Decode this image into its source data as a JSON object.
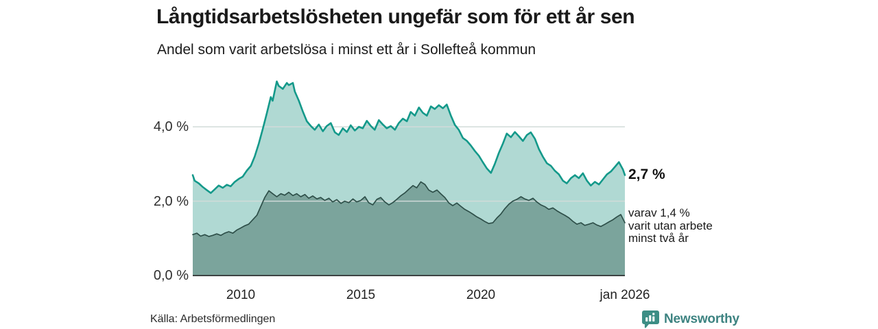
{
  "header": {
    "title": "Långtidsarbetslösheten ungefär som för ett år sen",
    "subtitle": "Andel som varit arbetslösa i minst ett år i Sollefteå kommun"
  },
  "chart_data": {
    "type": "area",
    "title": "Långtidsarbetslösheten ungefär som för ett år sen",
    "subtitle": "Andel som varit arbetslösa i minst ett år i Sollefteå kommun",
    "unit": "%",
    "grid": "on",
    "x_range": [
      2008,
      2026
    ],
    "y_range": [
      0,
      5.4
    ],
    "grid_color": "#d2dbd9",
    "axis_color": "#3d4343",
    "y_ticks": [
      {
        "label": "0,0 %",
        "value": 0
      },
      {
        "label": "2,0 %",
        "value": 2
      },
      {
        "label": "4,0 %",
        "value": 4
      }
    ],
    "x_ticks": [
      {
        "label": "2010",
        "year": 2010
      },
      {
        "label": "2015",
        "year": 2015
      },
      {
        "label": "2020",
        "year": 2020
      },
      {
        "label": "jan 2026",
        "year": 2026
      }
    ],
    "series": [
      {
        "name": "Andel arbetslösa minst ett år",
        "color": "#14998a",
        "fill": "#b0d9d3",
        "stroke_width": 2.6,
        "last_value_label": "2,7 %",
        "points": [
          [
            2008.0,
            2.7
          ],
          [
            2008.08,
            2.55
          ],
          [
            2008.25,
            2.48
          ],
          [
            2008.42,
            2.38
          ],
          [
            2008.58,
            2.3
          ],
          [
            2008.75,
            2.22
          ],
          [
            2008.92,
            2.32
          ],
          [
            2009.08,
            2.42
          ],
          [
            2009.25,
            2.36
          ],
          [
            2009.42,
            2.44
          ],
          [
            2009.58,
            2.4
          ],
          [
            2009.75,
            2.52
          ],
          [
            2009.92,
            2.6
          ],
          [
            2010.08,
            2.66
          ],
          [
            2010.25,
            2.82
          ],
          [
            2010.42,
            2.95
          ],
          [
            2010.58,
            3.2
          ],
          [
            2010.75,
            3.55
          ],
          [
            2010.92,
            3.95
          ],
          [
            2011.08,
            4.35
          ],
          [
            2011.25,
            4.8
          ],
          [
            2011.33,
            4.7
          ],
          [
            2011.5,
            5.22
          ],
          [
            2011.58,
            5.1
          ],
          [
            2011.75,
            5.02
          ],
          [
            2011.92,
            5.18
          ],
          [
            2012.0,
            5.12
          ],
          [
            2012.17,
            5.18
          ],
          [
            2012.25,
            4.95
          ],
          [
            2012.42,
            4.7
          ],
          [
            2012.58,
            4.42
          ],
          [
            2012.75,
            4.15
          ],
          [
            2012.92,
            4.02
          ],
          [
            2013.08,
            3.92
          ],
          [
            2013.25,
            4.06
          ],
          [
            2013.42,
            3.88
          ],
          [
            2013.58,
            4.02
          ],
          [
            2013.75,
            4.1
          ],
          [
            2013.92,
            3.85
          ],
          [
            2014.08,
            3.78
          ],
          [
            2014.25,
            3.96
          ],
          [
            2014.42,
            3.86
          ],
          [
            2014.58,
            4.04
          ],
          [
            2014.75,
            3.9
          ],
          [
            2014.92,
            4.0
          ],
          [
            2015.08,
            3.96
          ],
          [
            2015.25,
            4.16
          ],
          [
            2015.42,
            4.02
          ],
          [
            2015.58,
            3.92
          ],
          [
            2015.75,
            4.18
          ],
          [
            2015.92,
            4.06
          ],
          [
            2016.08,
            3.96
          ],
          [
            2016.25,
            4.02
          ],
          [
            2016.42,
            3.92
          ],
          [
            2016.58,
            4.1
          ],
          [
            2016.75,
            4.22
          ],
          [
            2016.92,
            4.15
          ],
          [
            2017.08,
            4.4
          ],
          [
            2017.25,
            4.3
          ],
          [
            2017.42,
            4.52
          ],
          [
            2017.58,
            4.38
          ],
          [
            2017.75,
            4.3
          ],
          [
            2017.92,
            4.55
          ],
          [
            2018.08,
            4.48
          ],
          [
            2018.25,
            4.58
          ],
          [
            2018.42,
            4.5
          ],
          [
            2018.58,
            4.6
          ],
          [
            2018.75,
            4.3
          ],
          [
            2018.92,
            4.05
          ],
          [
            2019.08,
            3.92
          ],
          [
            2019.25,
            3.7
          ],
          [
            2019.42,
            3.62
          ],
          [
            2019.58,
            3.5
          ],
          [
            2019.75,
            3.35
          ],
          [
            2019.92,
            3.22
          ],
          [
            2020.08,
            3.05
          ],
          [
            2020.25,
            2.88
          ],
          [
            2020.42,
            2.76
          ],
          [
            2020.58,
            3.0
          ],
          [
            2020.75,
            3.3
          ],
          [
            2020.92,
            3.55
          ],
          [
            2021.08,
            3.82
          ],
          [
            2021.25,
            3.72
          ],
          [
            2021.42,
            3.86
          ],
          [
            2021.58,
            3.75
          ],
          [
            2021.75,
            3.62
          ],
          [
            2021.92,
            3.78
          ],
          [
            2022.08,
            3.85
          ],
          [
            2022.25,
            3.68
          ],
          [
            2022.42,
            3.4
          ],
          [
            2022.58,
            3.2
          ],
          [
            2022.75,
            3.02
          ],
          [
            2022.92,
            2.95
          ],
          [
            2023.08,
            2.82
          ],
          [
            2023.25,
            2.72
          ],
          [
            2023.42,
            2.55
          ],
          [
            2023.58,
            2.48
          ],
          [
            2023.75,
            2.62
          ],
          [
            2023.92,
            2.7
          ],
          [
            2024.08,
            2.62
          ],
          [
            2024.25,
            2.75
          ],
          [
            2024.42,
            2.55
          ],
          [
            2024.58,
            2.42
          ],
          [
            2024.75,
            2.52
          ],
          [
            2024.92,
            2.45
          ],
          [
            2025.08,
            2.58
          ],
          [
            2025.25,
            2.72
          ],
          [
            2025.42,
            2.8
          ],
          [
            2025.58,
            2.92
          ],
          [
            2025.75,
            3.05
          ],
          [
            2025.92,
            2.85
          ],
          [
            2026.0,
            2.7
          ]
        ]
      },
      {
        "name": "varav utan arbete minst två år",
        "color": "#2e4f49",
        "fill": "#7ba49c",
        "stroke_width": 1.7,
        "last_value_label": "1,4 %",
        "points": [
          [
            2008.0,
            1.1
          ],
          [
            2008.17,
            1.14
          ],
          [
            2008.33,
            1.06
          ],
          [
            2008.5,
            1.1
          ],
          [
            2008.67,
            1.05
          ],
          [
            2008.83,
            1.08
          ],
          [
            2009.0,
            1.12
          ],
          [
            2009.17,
            1.08
          ],
          [
            2009.33,
            1.14
          ],
          [
            2009.5,
            1.18
          ],
          [
            2009.67,
            1.14
          ],
          [
            2009.83,
            1.22
          ],
          [
            2010.0,
            1.28
          ],
          [
            2010.17,
            1.34
          ],
          [
            2010.33,
            1.38
          ],
          [
            2010.5,
            1.5
          ],
          [
            2010.67,
            1.62
          ],
          [
            2010.83,
            1.85
          ],
          [
            2011.0,
            2.1
          ],
          [
            2011.17,
            2.28
          ],
          [
            2011.33,
            2.2
          ],
          [
            2011.5,
            2.12
          ],
          [
            2011.67,
            2.2
          ],
          [
            2011.83,
            2.16
          ],
          [
            2012.0,
            2.24
          ],
          [
            2012.17,
            2.15
          ],
          [
            2012.33,
            2.2
          ],
          [
            2012.5,
            2.12
          ],
          [
            2012.67,
            2.18
          ],
          [
            2012.83,
            2.08
          ],
          [
            2013.0,
            2.14
          ],
          [
            2013.17,
            2.06
          ],
          [
            2013.33,
            2.1
          ],
          [
            2013.5,
            2.02
          ],
          [
            2013.67,
            2.08
          ],
          [
            2013.83,
            1.98
          ],
          [
            2014.0,
            2.04
          ],
          [
            2014.17,
            1.94
          ],
          [
            2014.33,
            2.0
          ],
          [
            2014.5,
            1.96
          ],
          [
            2014.67,
            2.06
          ],
          [
            2014.83,
            1.98
          ],
          [
            2015.0,
            2.02
          ],
          [
            2015.17,
            2.12
          ],
          [
            2015.33,
            1.96
          ],
          [
            2015.5,
            1.9
          ],
          [
            2015.67,
            2.05
          ],
          [
            2015.83,
            2.1
          ],
          [
            2016.0,
            1.98
          ],
          [
            2016.17,
            1.9
          ],
          [
            2016.33,
            1.96
          ],
          [
            2016.5,
            2.05
          ],
          [
            2016.67,
            2.15
          ],
          [
            2016.83,
            2.22
          ],
          [
            2017.0,
            2.32
          ],
          [
            2017.17,
            2.42
          ],
          [
            2017.33,
            2.36
          ],
          [
            2017.5,
            2.52
          ],
          [
            2017.67,
            2.45
          ],
          [
            2017.83,
            2.3
          ],
          [
            2018.0,
            2.24
          ],
          [
            2018.17,
            2.3
          ],
          [
            2018.33,
            2.2
          ],
          [
            2018.5,
            2.1
          ],
          [
            2018.67,
            1.95
          ],
          [
            2018.83,
            1.88
          ],
          [
            2019.0,
            1.95
          ],
          [
            2019.17,
            1.86
          ],
          [
            2019.33,
            1.78
          ],
          [
            2019.5,
            1.72
          ],
          [
            2019.67,
            1.65
          ],
          [
            2019.83,
            1.58
          ],
          [
            2020.0,
            1.52
          ],
          [
            2020.17,
            1.45
          ],
          [
            2020.33,
            1.4
          ],
          [
            2020.5,
            1.42
          ],
          [
            2020.67,
            1.55
          ],
          [
            2020.83,
            1.65
          ],
          [
            2021.0,
            1.8
          ],
          [
            2021.17,
            1.92
          ],
          [
            2021.33,
            2.0
          ],
          [
            2021.5,
            2.05
          ],
          [
            2021.67,
            2.12
          ],
          [
            2021.83,
            2.06
          ],
          [
            2022.0,
            2.02
          ],
          [
            2022.17,
            2.08
          ],
          [
            2022.33,
            1.98
          ],
          [
            2022.5,
            1.9
          ],
          [
            2022.67,
            1.85
          ],
          [
            2022.83,
            1.78
          ],
          [
            2023.0,
            1.82
          ],
          [
            2023.17,
            1.74
          ],
          [
            2023.33,
            1.68
          ],
          [
            2023.5,
            1.62
          ],
          [
            2023.67,
            1.55
          ],
          [
            2023.83,
            1.46
          ],
          [
            2024.0,
            1.38
          ],
          [
            2024.17,
            1.42
          ],
          [
            2024.33,
            1.35
          ],
          [
            2024.5,
            1.38
          ],
          [
            2024.67,
            1.42
          ],
          [
            2024.83,
            1.36
          ],
          [
            2025.0,
            1.32
          ],
          [
            2025.17,
            1.38
          ],
          [
            2025.33,
            1.44
          ],
          [
            2025.5,
            1.5
          ],
          [
            2025.67,
            1.58
          ],
          [
            2025.83,
            1.64
          ],
          [
            2026.0,
            1.42
          ]
        ]
      }
    ],
    "annotations": {
      "total_label": "2,7 %",
      "detail_line_1": "varav 1,4 %",
      "detail_line_2": "varit utan arbete",
      "detail_line_3": "minst två år"
    },
    "legend_position": "none"
  },
  "footer": {
    "source": "Källa: Arbetsförmedlingen",
    "brand": "Newsworthy",
    "brand_color": "#3d8381"
  }
}
